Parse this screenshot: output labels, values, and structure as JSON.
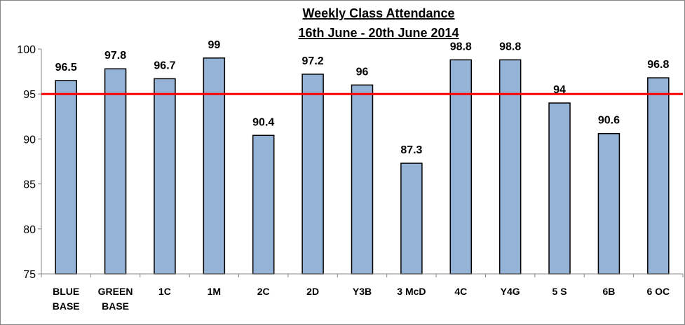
{
  "chart_data": {
    "type": "bar",
    "title": [
      "Weekly Class Attendance",
      "16th June - 20th June 2014"
    ],
    "xlabel": "",
    "ylabel": "",
    "categories": [
      [
        "BLUE",
        "BASE"
      ],
      [
        "GREEN",
        "BASE"
      ],
      [
        "1C"
      ],
      [
        "1M"
      ],
      [
        "2C"
      ],
      [
        "2D"
      ],
      [
        "Y3B"
      ],
      [
        "3 McD"
      ],
      [
        "4C"
      ],
      [
        "Y4G"
      ],
      [
        "5 S"
      ],
      [
        "6B"
      ],
      [
        "6 OC"
      ]
    ],
    "values": [
      96.5,
      97.8,
      96.7,
      99,
      90.4,
      97.2,
      96,
      87.3,
      98.8,
      98.8,
      94,
      90.6,
      96.8
    ],
    "data_labels": [
      "96.5",
      "97.8",
      "96.7",
      "99",
      "90.4",
      "97.2",
      "96",
      "87.3",
      "98.8",
      "98.8",
      "94",
      "90.6",
      "96.8"
    ],
    "ylim": [
      75,
      100
    ],
    "yticks": [
      75,
      80,
      85,
      90,
      95,
      100
    ],
    "reference_line": 95,
    "grid": false,
    "legend": "none",
    "colors": {
      "bar_fill": "#95b3d7",
      "bar_stroke": "#000000",
      "reference_line": "#ff0000",
      "axis": "#868686"
    }
  }
}
